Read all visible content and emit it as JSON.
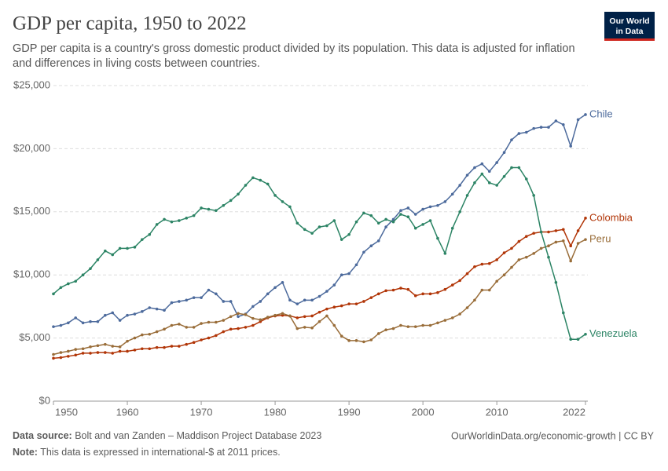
{
  "chart_data": {
    "type": "line",
    "title": "GDP per capita, 1950 to 2022",
    "subtitle": [
      "GDP per capita is a country's gross domestic product divided by its population. This data is adjusted for inflation",
      "and differences in living costs between countries."
    ],
    "x": [
      1950,
      1951,
      1952,
      1953,
      1954,
      1955,
      1956,
      1957,
      1958,
      1959,
      1960,
      1961,
      1962,
      1963,
      1964,
      1965,
      1966,
      1967,
      1968,
      1969,
      1970,
      1971,
      1972,
      1973,
      1974,
      1975,
      1976,
      1977,
      1978,
      1979,
      1980,
      1981,
      1982,
      1983,
      1984,
      1985,
      1986,
      1987,
      1988,
      1989,
      1990,
      1991,
      1992,
      1993,
      1994,
      1995,
      1996,
      1997,
      1998,
      1999,
      2000,
      2001,
      2002,
      2003,
      2004,
      2005,
      2006,
      2007,
      2008,
      2009,
      2010,
      2011,
      2012,
      2013,
      2014,
      2015,
      2016,
      2017,
      2018,
      2019,
      2020,
      2021,
      2022
    ],
    "series": [
      {
        "name": "Chile",
        "color": "#4c6a9c",
        "values": [
          5900,
          6000,
          6200,
          6600,
          6200,
          6300,
          6300,
          6800,
          7000,
          6400,
          6800,
          6900,
          7100,
          7400,
          7300,
          7200,
          7800,
          7900,
          8000,
          8200,
          8200,
          8800,
          8500,
          7900,
          7900,
          6700,
          6900,
          7500,
          7900,
          8500,
          9000,
          9400,
          8000,
          7700,
          8000,
          8000,
          8300,
          8700,
          9200,
          10000,
          10100,
          10800,
          11800,
          12300,
          12700,
          13800,
          14400,
          15100,
          15300,
          14800,
          15200,
          15400,
          15500,
          15800,
          16400,
          17100,
          17900,
          18500,
          18800,
          18200,
          18900,
          19700,
          20700,
          21200,
          21300,
          21600,
          21700,
          21700,
          22200,
          21900,
          20200,
          22300,
          22700
        ]
      },
      {
        "name": "Colombia",
        "color": "#b13507",
        "values": [
          3400,
          3450,
          3550,
          3650,
          3800,
          3800,
          3850,
          3850,
          3800,
          3950,
          3950,
          4050,
          4150,
          4150,
          4250,
          4250,
          4350,
          4350,
          4500,
          4650,
          4850,
          5000,
          5200,
          5500,
          5700,
          5750,
          5850,
          6000,
          6300,
          6600,
          6750,
          6800,
          6750,
          6600,
          6700,
          6750,
          7050,
          7300,
          7450,
          7550,
          7700,
          7700,
          7900,
          8200,
          8500,
          8750,
          8800,
          8950,
          8850,
          8350,
          8500,
          8500,
          8600,
          8850,
          9200,
          9550,
          10100,
          10650,
          10850,
          10900,
          11200,
          11750,
          12100,
          12650,
          13050,
          13300,
          13400,
          13400,
          13500,
          13600,
          12300,
          13500,
          14500
        ]
      },
      {
        "name": "Peru",
        "color": "#996d39",
        "values": [
          3700,
          3850,
          3950,
          4100,
          4150,
          4300,
          4400,
          4500,
          4350,
          4300,
          4750,
          5000,
          5250,
          5300,
          5500,
          5700,
          6000,
          6100,
          5850,
          5850,
          6150,
          6250,
          6250,
          6400,
          6700,
          6950,
          6850,
          6550,
          6450,
          6650,
          6800,
          6950,
          6750,
          5750,
          5850,
          5800,
          6300,
          6750,
          6000,
          5150,
          4800,
          4800,
          4700,
          4850,
          5350,
          5650,
          5750,
          6000,
          5900,
          5900,
          6000,
          6000,
          6200,
          6400,
          6600,
          6900,
          7400,
          8000,
          8800,
          8800,
          9500,
          10000,
          10600,
          11200,
          11400,
          11700,
          12100,
          12300,
          12600,
          12700,
          11100,
          12500,
          12800
        ]
      },
      {
        "name": "Venezuela",
        "color": "#2c8465",
        "values": [
          8500,
          9000,
          9300,
          9500,
          10000,
          10500,
          11200,
          11900,
          11600,
          12100,
          12100,
          12200,
          12800,
          13200,
          14000,
          14400,
          14200,
          14300,
          14500,
          14700,
          15300,
          15200,
          15100,
          15500,
          15900,
          16400,
          17100,
          17700,
          17500,
          17200,
          16300,
          15800,
          15400,
          14100,
          13600,
          13300,
          13800,
          13900,
          14300,
          12800,
          13200,
          14200,
          14900,
          14700,
          14100,
          14400,
          14200,
          14800,
          14600,
          13700,
          14000,
          14300,
          12900,
          11700,
          13700,
          15000,
          16300,
          17300,
          18000,
          17300,
          17100,
          17800,
          18500,
          18500,
          17600,
          16300,
          13400,
          11400,
          9400,
          7000,
          4900,
          4900,
          5300
        ]
      }
    ],
    "xlim": [
      1950,
      2022
    ],
    "xticks": [
      1950,
      1960,
      1970,
      1980,
      1990,
      2000,
      2010,
      2022
    ],
    "ylim": [
      0,
      25000
    ],
    "yticks": [
      {
        "value": 0,
        "label": "$0"
      },
      {
        "value": 5000,
        "label": "$5,000"
      },
      {
        "value": 10000,
        "label": "$10,000"
      },
      {
        "value": 15000,
        "label": "$15,000"
      },
      {
        "value": 20000,
        "label": "$20,000"
      },
      {
        "value": 25000,
        "label": "$25,000"
      }
    ],
    "grid": true
  },
  "logo": [
    "Our World",
    "in Data"
  ],
  "footer": {
    "source_label": "Data source:",
    "source": "Bolt and van Zanden – Maddison Project Database 2023",
    "link": "OurWorldinData.org/economic-growth | CC BY",
    "note_label": "Note:",
    "note": "This data is expressed in international-$ at 2011 prices."
  }
}
